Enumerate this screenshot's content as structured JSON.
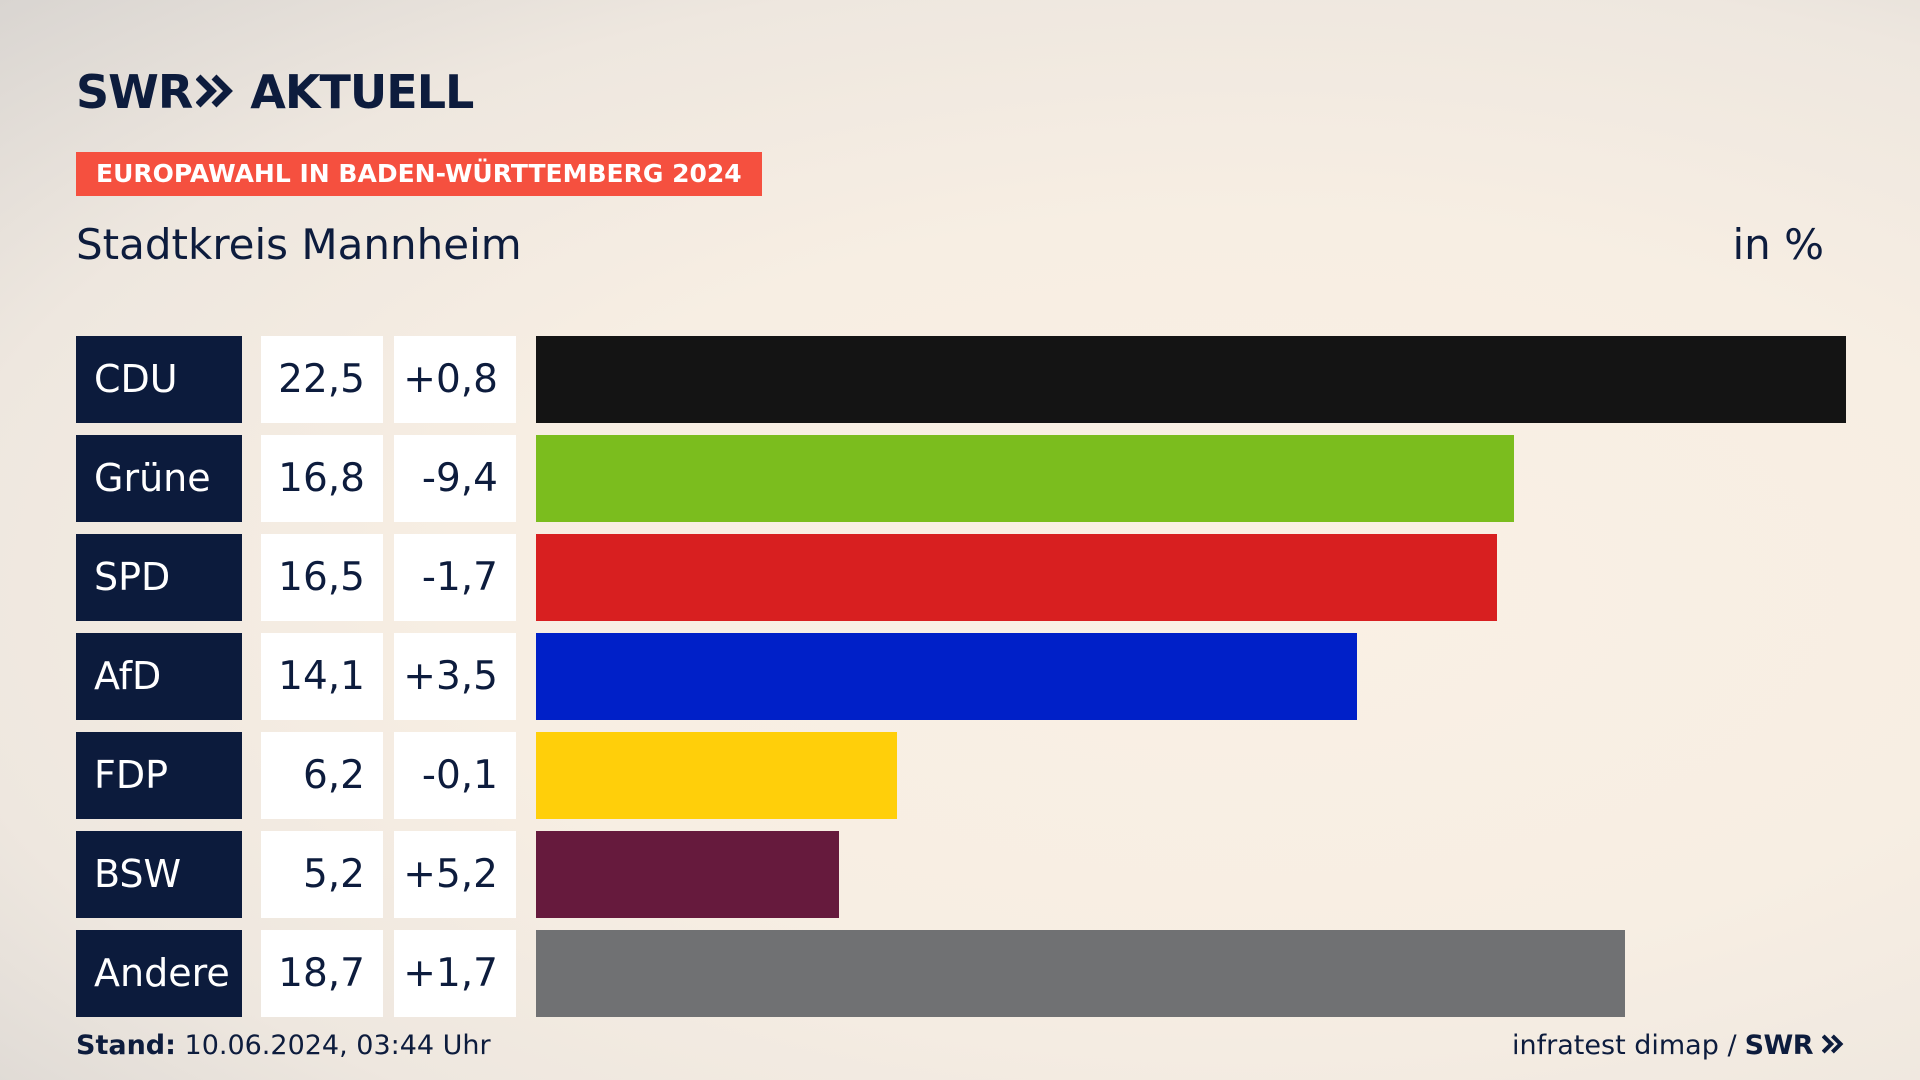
{
  "brand": {
    "logo_left": "SWR",
    "logo_right": "AKTUELL",
    "footer_logo": "SWR"
  },
  "badge": "EUROPAWAHL IN BADEN-WÜRTTEMBERG 2024",
  "title": "Stadtkreis Mannheim",
  "unit": "in %",
  "footer": {
    "stand_label": "Stand:",
    "stand_value": "10.06.2024, 03:44 Uhr",
    "source": "infratest dimap /"
  },
  "chart_data": {
    "type": "bar",
    "orientation": "horizontal",
    "title": "Stadtkreis Mannheim",
    "unit": "in %",
    "max_value": 22.5,
    "categories": [
      "CDU",
      "Grüne",
      "SPD",
      "AfD",
      "FDP",
      "BSW",
      "Andere"
    ],
    "values": [
      22.5,
      16.8,
      16.5,
      14.1,
      6.2,
      5.2,
      18.7
    ],
    "labels": [
      "22,5",
      "16,8",
      "16,5",
      "14,1",
      "6,2",
      "5,2",
      "18,7"
    ],
    "changes": [
      "+0,8",
      "-9,4",
      "-1,7",
      "+3,5",
      "-0,1",
      "+5,2",
      "+1,7"
    ],
    "colors": [
      "#141414",
      "#7bbd1e",
      "#d81f20",
      "#0020c8",
      "#ffcf0a",
      "#661a3d",
      "#707173"
    ]
  }
}
